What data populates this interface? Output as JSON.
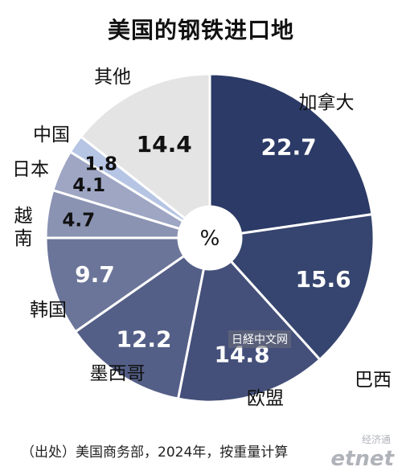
{
  "page": {
    "title": "美国的钢铁进口地",
    "source": "（出处）美国商务部，2024年，按重量计算"
  },
  "watermarks": {
    "newspaper": "日経中文网",
    "etnet_cn": "经济通",
    "etnet": "etnet"
  },
  "chart_data": {
    "type": "pie",
    "unit": "%",
    "slices": [
      {
        "label": "加拿大",
        "value": 22.7,
        "color": "#2b3a66"
      },
      {
        "label": "巴西",
        "value": 15.6,
        "color": "#36456f"
      },
      {
        "label": "欧盟",
        "value": 14.8,
        "color": "#44507a"
      },
      {
        "label": "墨西哥",
        "value": 12.2,
        "color": "#545f87"
      },
      {
        "label": "韩国",
        "value": 9.7,
        "color": "#6b7599"
      },
      {
        "label": "越南",
        "value": 4.7,
        "color": "#8b93b3"
      },
      {
        "label": "日本",
        "value": 4.1,
        "color": "#9ea6c4"
      },
      {
        "label": "中国",
        "value": 1.8,
        "color": "#b6c5e4"
      },
      {
        "label": "其他",
        "value": 14.4,
        "color": "#e4e4e4"
      }
    ]
  }
}
